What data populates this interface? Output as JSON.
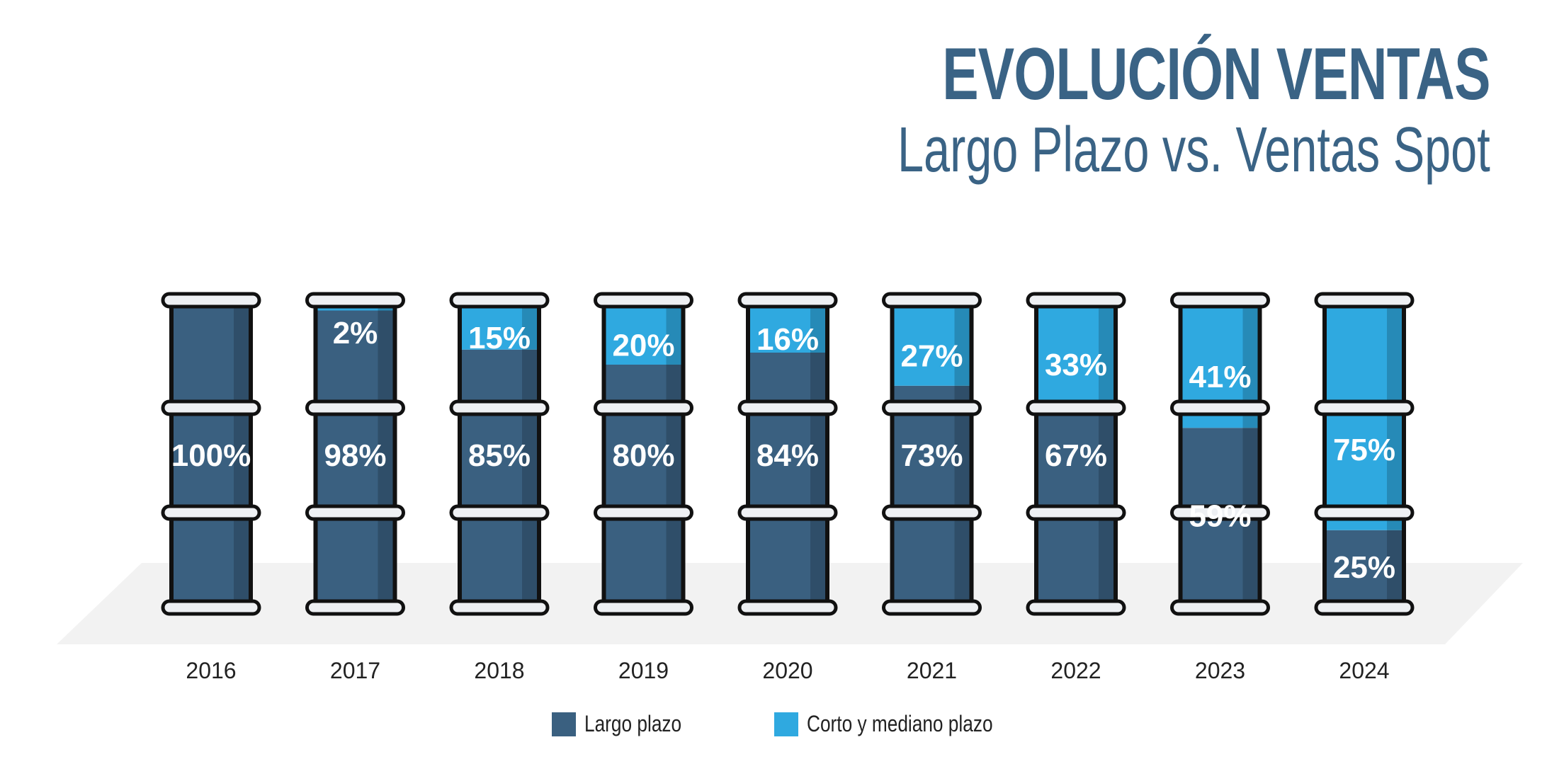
{
  "title": "EVOLUCIÓN VENTAS",
  "subtitle": "Largo Plazo vs. Ventas Spot",
  "colors": {
    "long": "#3a6080",
    "short": "#2fa9e0",
    "outline": "#111111",
    "floor": "#f2f2f2",
    "title": "#3a6385"
  },
  "legend": [
    {
      "label": "Largo plazo",
      "color": "#3a6080"
    },
    {
      "label": "Corto y mediano plazo",
      "color": "#2fa9e0"
    }
  ],
  "chart_data": {
    "type": "bar",
    "stacked": true,
    "categories": [
      "2016",
      "2017",
      "2018",
      "2019",
      "2020",
      "2021",
      "2022",
      "2023",
      "2024"
    ],
    "series": [
      {
        "name": "Largo plazo",
        "values": [
          100,
          98,
          85,
          80,
          84,
          73,
          67,
          59,
          25
        ],
        "labels": [
          "100%",
          "98%",
          "85%",
          "80%",
          "84%",
          "73%",
          "67%",
          "59%",
          "25%"
        ]
      },
      {
        "name": "Corto y mediano plazo",
        "values": [
          0,
          2,
          15,
          20,
          16,
          27,
          33,
          41,
          75
        ],
        "labels": [
          "",
          "2%",
          "15%",
          "20%",
          "16%",
          "27%",
          "33%",
          "41%",
          "75%"
        ]
      }
    ],
    "ylim": [
      0,
      100
    ],
    "legend_position": "bottom"
  }
}
